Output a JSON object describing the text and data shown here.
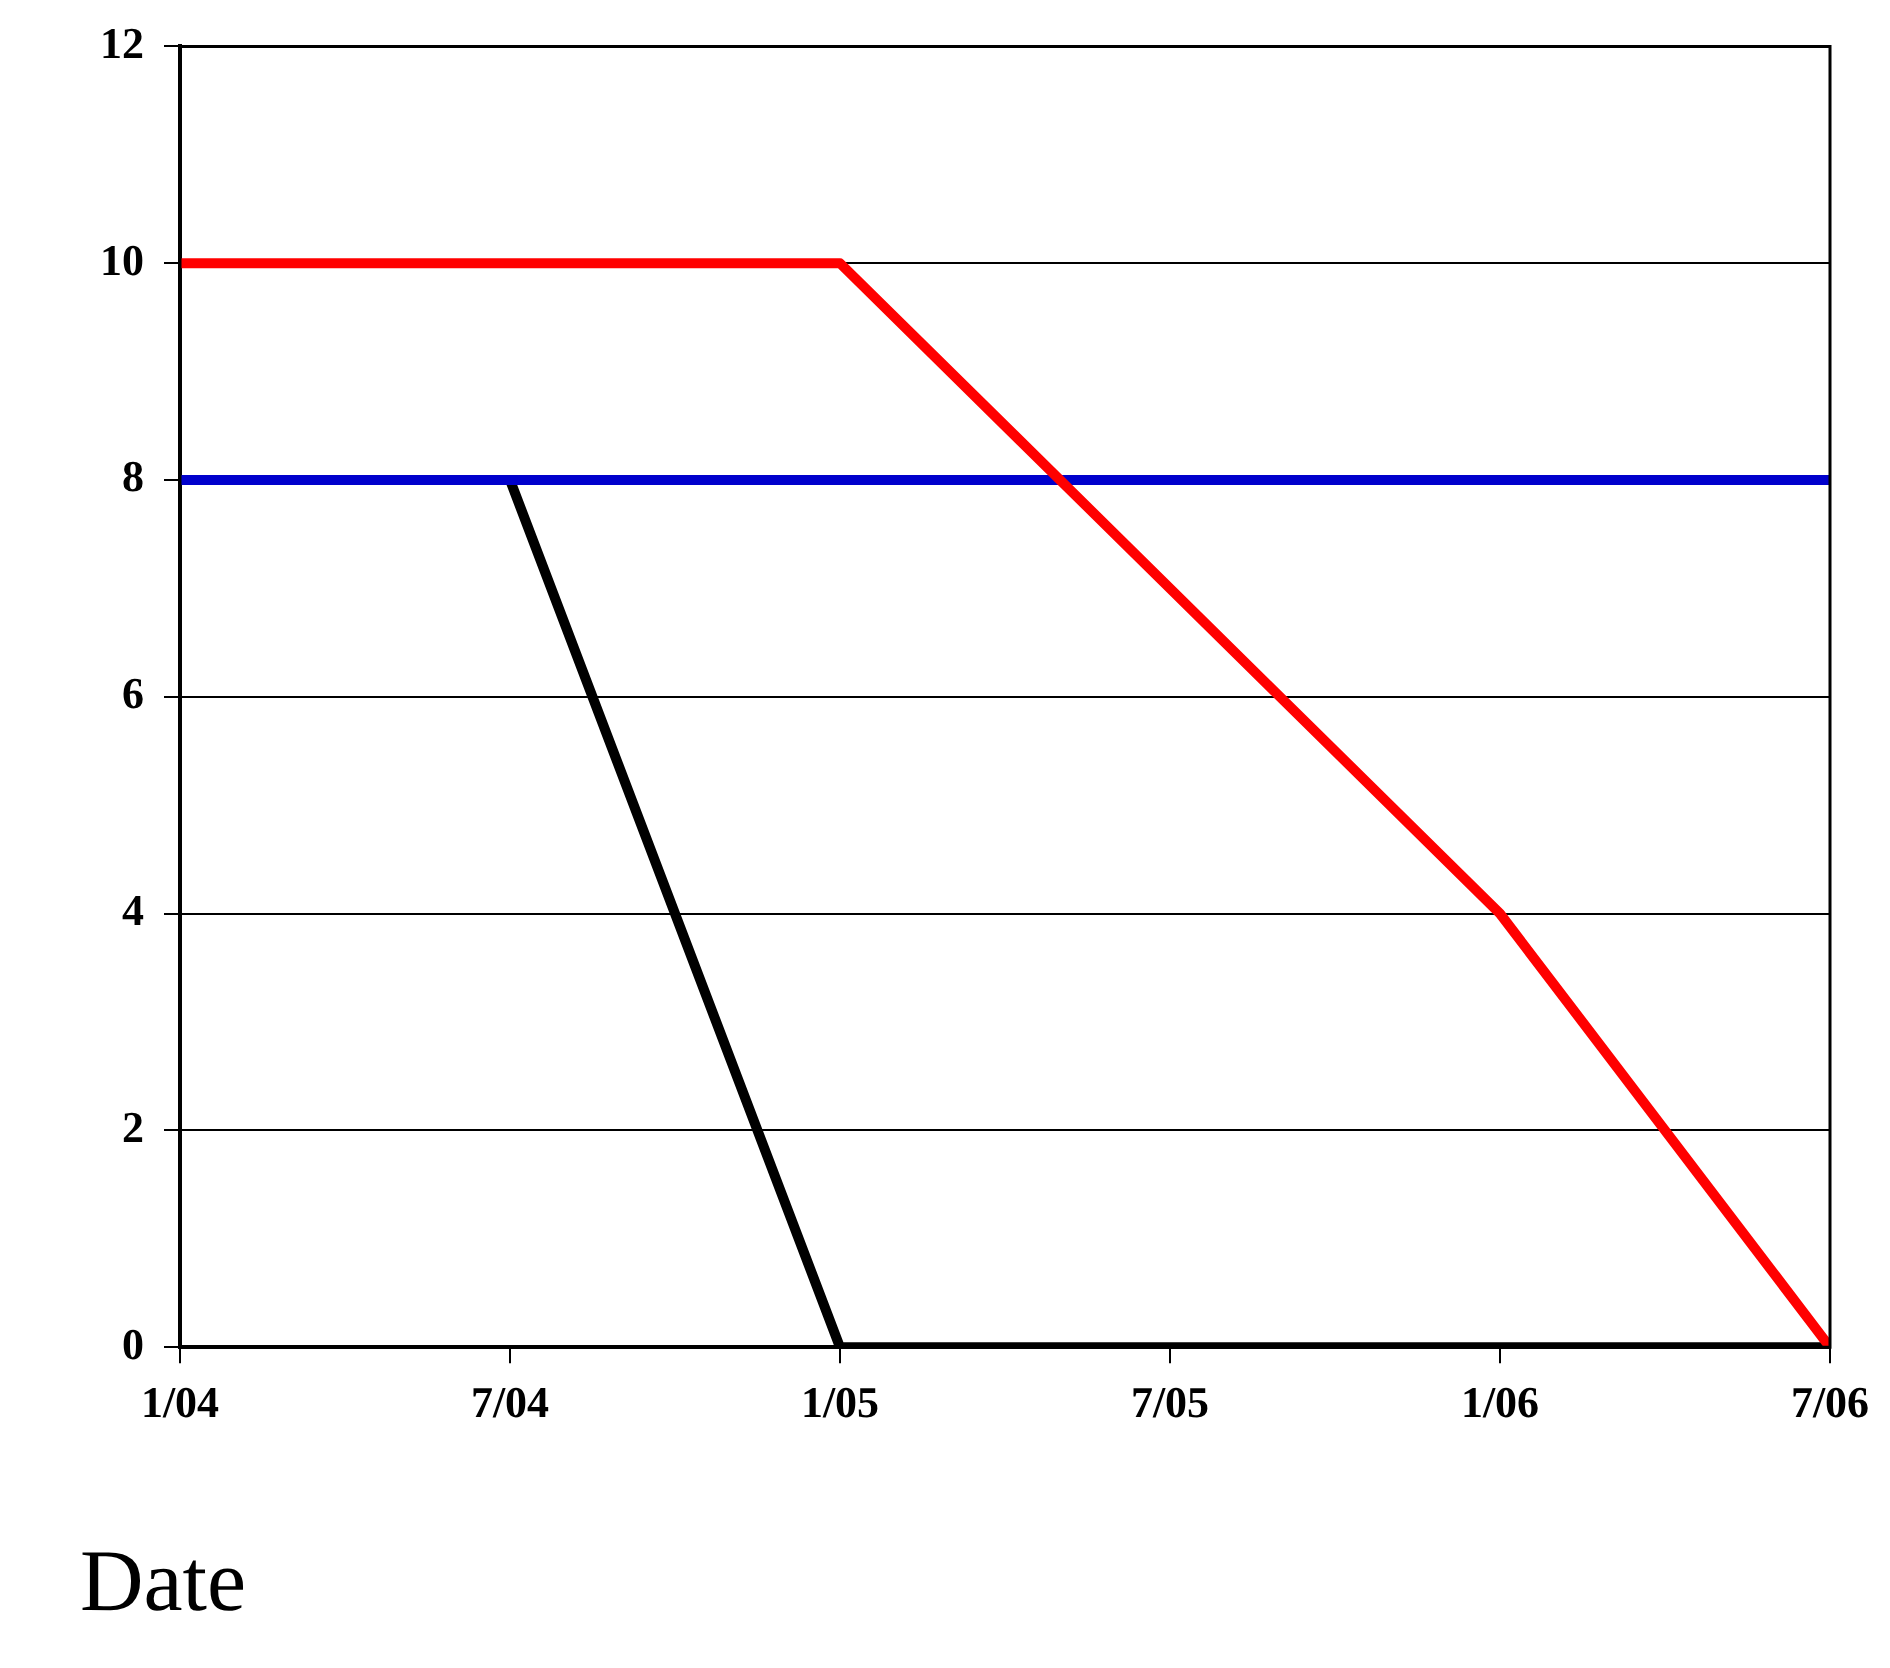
{
  "chart_data": {
    "type": "line",
    "xlabel": "Date",
    "series": [
      {
        "color": "#ff0000",
        "x": [
          "2004-01",
          "2005-01",
          "2006-01",
          "2006-07"
        ],
        "values": [
          10,
          10,
          4,
          0
        ]
      },
      {
        "color": "#0000cc",
        "x": [
          "2004-01",
          "2006-07"
        ],
        "values": [
          8,
          8
        ]
      },
      {
        "color": "#000000",
        "x": [
          "2004-07",
          "2005-01",
          "2006-07"
        ],
        "values": [
          8,
          0,
          0
        ]
      }
    ],
    "xlim": [
      "2004-01",
      "2006-07"
    ],
    "xticks": [
      {
        "value": "2004-01",
        "label": "1/04"
      },
      {
        "value": "2004-07",
        "label": "7/04"
      },
      {
        "value": "2005-01",
        "label": "1/05"
      },
      {
        "value": "2005-07",
        "label": "7/05"
      },
      {
        "value": "2006-01",
        "label": "1/06"
      },
      {
        "value": "2006-07",
        "label": "7/06"
      }
    ],
    "ylim": [
      0,
      12
    ],
    "yticks": [
      0,
      2,
      4,
      6,
      8,
      10,
      12
    ],
    "grid": "y",
    "legend": false,
    "marker": "none",
    "line_style": "solid"
  }
}
